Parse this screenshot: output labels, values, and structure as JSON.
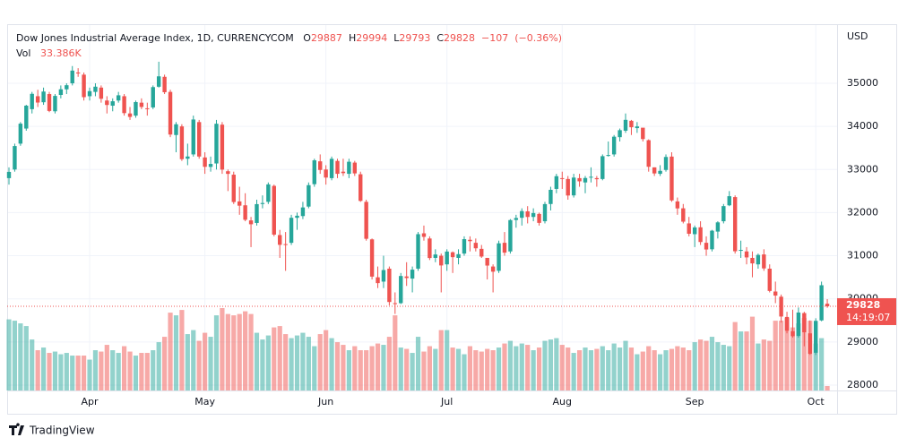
{
  "chart_data": {
    "type": "candlestick",
    "title": "Dow Jones Industrial Average Index, 1D, CURRENCYCOM",
    "ohlc_names": [
      "O",
      "H",
      "L",
      "C"
    ],
    "change": {
      "value": -107,
      "label": "−107"
    },
    "change_pct": {
      "value": -0.36,
      "label": "(−0.36%)"
    },
    "currency": "USD",
    "countdown": "14:19:07",
    "brand": "TradingView",
    "up_color": "#26a69a",
    "down_color": "#ef5350",
    "grid": true,
    "ylim": [
      27875,
      36350
    ],
    "yticks": [
      28000,
      29000,
      30000,
      31000,
      32000,
      33000,
      34000,
      35000
    ],
    "categories": [
      null,
      null,
      null,
      null,
      null,
      null,
      null,
      null,
      null,
      null,
      null,
      null,
      null,
      null,
      "Apr",
      null,
      null,
      null,
      null,
      null,
      null,
      null,
      null,
      null,
      null,
      null,
      null,
      null,
      null,
      null,
      null,
      null,
      null,
      null,
      "May",
      null,
      null,
      null,
      null,
      null,
      null,
      null,
      null,
      null,
      null,
      null,
      null,
      null,
      null,
      null,
      null,
      null,
      null,
      null,
      null,
      "Jun",
      null,
      null,
      null,
      null,
      null,
      null,
      null,
      null,
      null,
      null,
      null,
      null,
      null,
      null,
      null,
      null,
      null,
      null,
      null,
      null,
      "Jul",
      null,
      null,
      null,
      null,
      null,
      null,
      null,
      null,
      null,
      null,
      null,
      null,
      null,
      null,
      null,
      null,
      null,
      null,
      null,
      "Aug",
      null,
      null,
      null,
      null,
      null,
      null,
      null,
      null,
      null,
      null,
      null,
      null,
      null,
      null,
      null,
      null,
      null,
      null,
      null,
      null,
      null,
      null,
      "Sep",
      null,
      null,
      null,
      null,
      null,
      null,
      null,
      null,
      null,
      null,
      null,
      null,
      null,
      null,
      null,
      null,
      null,
      null,
      null,
      null,
      "Oct",
      null,
      null
    ],
    "open": [
      32800,
      33000,
      33600,
      33950,
      34400,
      34700,
      34560,
      34750,
      34350,
      34730,
      34860,
      35000,
      35250,
      35200,
      34700,
      34800,
      34900,
      34600,
      34480,
      34600,
      34700,
      34300,
      34250,
      34550,
      34420,
      34440,
      34920,
      35150,
      34800,
      33800,
      34000,
      33250,
      33350,
      34100,
      33280,
      33060,
      33140,
      34040,
      32960,
      32880,
      32260,
      32170,
      31820,
      31760,
      32200,
      32250,
      32620,
      31480,
      31270,
      31300,
      31880,
      31920,
      32140,
      32660,
      33190,
      33000,
      32800,
      33200,
      32950,
      32900,
      33160,
      32890,
      32250,
      31380,
      30500,
      30400,
      30700,
      29900,
      29900,
      30520,
      30470,
      30700,
      31520,
      31400,
      30950,
      31000,
      30800,
      31080,
      30950,
      31050,
      31370,
      31300,
      31160,
      30950,
      30750,
      30650,
      31300,
      31100,
      31830,
      31880,
      32030,
      31900,
      31970,
      31800,
      32200,
      32550,
      32800,
      32780,
      32400,
      32800,
      32700,
      32820,
      32800,
      32780,
      33320,
      33350,
      33750,
      33900,
      34130,
      33960,
      33970,
      33680,
      33050,
      32900,
      32990,
      33300,
      32260,
      32100,
      31750,
      31500,
      31660,
      31300,
      31150,
      31560,
      31800,
      32170,
      32360,
      31120,
      31100,
      30950,
      30800,
      31030,
      30700,
      30170,
      30050,
      29580,
      29250,
      29140,
      29670,
      29200,
      28750,
      29500,
      29887
    ],
    "high": [
      33050,
      33600,
      34100,
      34500,
      34800,
      34850,
      34900,
      34800,
      34750,
      34950,
      35000,
      35400,
      35350,
      35250,
      34900,
      35000,
      34950,
      34700,
      34650,
      34800,
      34750,
      34450,
      34600,
      34650,
      34550,
      34950,
      35500,
      35200,
      34850,
      34100,
      34050,
      33600,
      34250,
      34150,
      33400,
      33300,
      34150,
      34100,
      33000,
      32950,
      32600,
      32450,
      31900,
      32300,
      32400,
      32700,
      32650,
      31600,
      31550,
      31950,
      32000,
      32250,
      32700,
      33250,
      33350,
      33100,
      33300,
      33250,
      33250,
      33250,
      33200,
      32950,
      32300,
      31400,
      30750,
      31000,
      30750,
      30150,
      30600,
      30850,
      30750,
      31550,
      31700,
      31450,
      31150,
      31050,
      31150,
      31100,
      31150,
      31450,
      31450,
      31400,
      31250,
      30950,
      30800,
      31350,
      31550,
      31850,
      31950,
      32100,
      32150,
      32100,
      32000,
      32250,
      32600,
      32900,
      32950,
      32850,
      32900,
      32900,
      32850,
      33050,
      32850,
      33350,
      33650,
      33800,
      33950,
      34300,
      34150,
      34100,
      33950,
      33700,
      33050,
      33100,
      33350,
      33400,
      32350,
      32200,
      31900,
      31700,
      31800,
      31450,
      31600,
      31800,
      32200,
      32500,
      32400,
      31350,
      31200,
      31100,
      31050,
      31150,
      30800,
      30400,
      30100,
      29700,
      29750,
      29800,
      29700,
      29500,
      29550,
      30400,
      29994
    ],
    "low": [
      32650,
      32950,
      33550,
      33900,
      34300,
      34450,
      34500,
      34330,
      34300,
      34650,
      34750,
      34950,
      35150,
      34600,
      34600,
      34700,
      34550,
      34300,
      34350,
      34550,
      34250,
      34150,
      34200,
      34400,
      34250,
      34400,
      34900,
      34750,
      33750,
      33400,
      33200,
      33100,
      33300,
      33250,
      32900,
      32950,
      33000,
      32900,
      32500,
      32200,
      31950,
      31800,
      31200,
      31700,
      32100,
      32200,
      31450,
      30950,
      30650,
      31250,
      31600,
      31850,
      32100,
      32600,
      32900,
      32650,
      32750,
      32800,
      32850,
      32800,
      32850,
      32250,
      31350,
      30450,
      30250,
      30250,
      29850,
      29650,
      29880,
      30300,
      30150,
      30650,
      31350,
      30900,
      30850,
      30150,
      30650,
      30600,
      30800,
      31000,
      31100,
      31100,
      30950,
      30450,
      30150,
      30600,
      31000,
      31050,
      31650,
      31700,
      31750,
      31800,
      31700,
      31750,
      32050,
      32450,
      32550,
      32300,
      32350,
      32600,
      32450,
      32700,
      32600,
      32750,
      33300,
      33300,
      33650,
      33850,
      33800,
      33850,
      33650,
      32950,
      32850,
      32850,
      32950,
      32250,
      31950,
      31750,
      31450,
      31200,
      31250,
      31000,
      31100,
      31400,
      31750,
      32150,
      31050,
      30950,
      30800,
      30500,
      30700,
      30650,
      30150,
      29900,
      29450,
      29200,
      29100,
      29100,
      28900,
      28700,
      28700,
      29480,
      29793
    ],
    "close": [
      32945,
      33544,
      34063,
      34481,
      34755,
      34553,
      34808,
      34358,
      34707,
      34861,
      34955,
      35294,
      35228,
      34678,
      34818,
      34921,
      34641,
      34497,
      34583,
      34721,
      34308,
      34220,
      34564,
      34451,
      34412,
      34911,
      35161,
      34793,
      33811,
      34049,
      33240,
      33302,
      34160,
      33301,
      33062,
      33129,
      34061,
      32998,
      32899,
      32246,
      32161,
      31834,
      31730,
      32197,
      32223,
      32655,
      31490,
      31253,
      31262,
      31880,
      31928,
      32120,
      32637,
      33213,
      32990,
      32813,
      33248,
      32900,
      32916,
      33180,
      32910,
      32272,
      31393,
      30516,
      30365,
      30668,
      29927,
      29888,
      30530,
      30483,
      30677,
      31500,
      31438,
      30947,
      31029,
      30775,
      31097,
      30967,
      31037,
      31385,
      31338,
      31173,
      30981,
      30772,
      30630,
      31288,
      31072,
      31827,
      31875,
      32036,
      31899,
      31990,
      31762,
      32198,
      32529,
      32845,
      32798,
      32397,
      32813,
      32726,
      32803,
      32832,
      32775,
      33309,
      33336,
      33761,
      33912,
      34152,
      33980,
      33999,
      33706,
      33063,
      32909,
      32969,
      33291,
      32283,
      32098,
      31790,
      31510,
      31656,
      31318,
      31145,
      31581,
      31774,
      32151,
      32381,
      31104,
      31135,
      30961,
      30822,
      31019,
      30706,
      30184,
      30076,
      29590,
      29260,
      29134,
      29683,
      29225,
      28725,
      29490,
      30316,
      29828
    ],
    "volume": {
      "name": "Vol",
      "values": [
        530000,
        520000,
        500000,
        480000,
        380000,
        300000,
        320000,
        280000,
        290000,
        270000,
        280000,
        260000,
        260000,
        260000,
        230000,
        300000,
        290000,
        340000,
        300000,
        280000,
        330000,
        290000,
        260000,
        280000,
        280000,
        300000,
        360000,
        400000,
        580000,
        560000,
        600000,
        420000,
        450000,
        370000,
        430000,
        400000,
        560000,
        614000,
        570000,
        560000,
        570000,
        590000,
        570000,
        430000,
        380000,
        410000,
        470000,
        480000,
        420000,
        390000,
        410000,
        430000,
        400000,
        330000,
        420000,
        450000,
        390000,
        360000,
        340000,
        300000,
        330000,
        300000,
        300000,
        330000,
        350000,
        340000,
        400000,
        560000,
        320000,
        310000,
        280000,
        400000,
        290000,
        330000,
        310000,
        450000,
        450000,
        320000,
        310000,
        270000,
        330000,
        300000,
        290000,
        310000,
        300000,
        320000,
        350000,
        370000,
        330000,
        350000,
        340000,
        300000,
        320000,
        370000,
        380000,
        390000,
        340000,
        320000,
        280000,
        300000,
        320000,
        300000,
        310000,
        330000,
        300000,
        350000,
        320000,
        370000,
        320000,
        270000,
        290000,
        330000,
        300000,
        270000,
        300000,
        310000,
        330000,
        320000,
        300000,
        360000,
        380000,
        370000,
        400000,
        360000,
        340000,
        330000,
        510000,
        440000,
        440000,
        550000,
        350000,
        380000,
        370000,
        520000,
        520000,
        540000,
        470000,
        500000,
        540000,
        520000,
        350000,
        390000,
        33386
      ],
      "value_labels": {
        "142": "33.386K"
      }
    }
  }
}
